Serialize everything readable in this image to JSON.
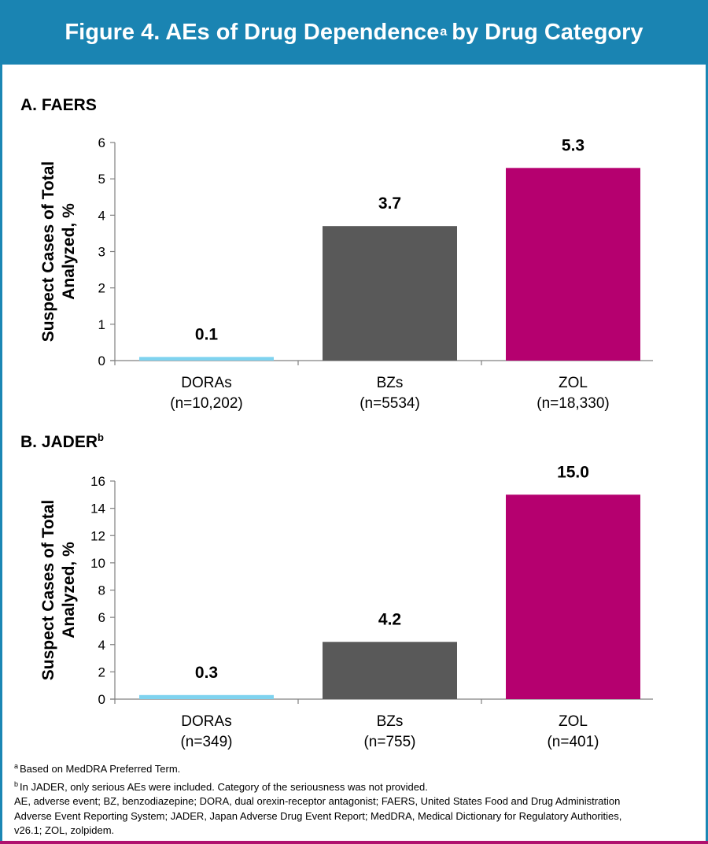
{
  "figure": {
    "title": "Figure 4. AEs of Drug Dependence",
    "title_sup": "a",
    "title_suffix": "by Drug Category",
    "banner_color": "#1a84b2"
  },
  "chart_data": [
    {
      "type": "bar",
      "panel_label": "A. FAERS",
      "panel_label_sup": "",
      "categories": [
        "DORAs",
        "BZs",
        "ZOL"
      ],
      "category_n": [
        "(n=10,202)",
        "(n=5534)",
        "(n=18,330)"
      ],
      "values": [
        0.1,
        3.7,
        5.3
      ],
      "data_labels": [
        "0.1",
        "3.7",
        "5.3"
      ],
      "colors": [
        "#7fd3ef",
        "#595959",
        "#b5006f"
      ],
      "ylabel": [
        "Suspect Cases of Total",
        "Analyzed, %"
      ],
      "ylim": [
        0,
        6
      ],
      "yticks": [
        0,
        1,
        2,
        3,
        4,
        5,
        6
      ],
      "grid": false
    },
    {
      "type": "bar",
      "panel_label": "B. JADER",
      "panel_label_sup": "b",
      "categories": [
        "DORAs",
        "BZs",
        "ZOL"
      ],
      "category_n": [
        "(n=349)",
        "(n=755)",
        "(n=401)"
      ],
      "values": [
        0.3,
        4.2,
        15.0
      ],
      "data_labels": [
        "0.3",
        "4.2",
        "15.0"
      ],
      "colors": [
        "#7fd3ef",
        "#595959",
        "#b5006f"
      ],
      "ylabel": [
        "Suspect Cases of Total",
        "Analyzed, %"
      ],
      "ylim": [
        0,
        16
      ],
      "yticks": [
        0,
        2,
        4,
        6,
        8,
        10,
        12,
        14,
        16
      ],
      "grid": false
    }
  ],
  "footnotes": {
    "a_mark": "a",
    "a_text": "Based on MedDRA Preferred Term.",
    "b_mark": "b",
    "b_text": "In JADER, only serious AEs were included. Category of the seriousness was not provided.",
    "abbrev_1": "AE, adverse event; BZ, benzodiazepine; DORA, dual orexin-receptor antagonist; FAERS, United States Food and Drug Administration",
    "abbrev_2": "Adverse Event Reporting System; JADER, Japan Adverse Drug Event Report; MedDRA, Medical Dictionary for Regulatory Authorities,",
    "abbrev_3": "v26.1; ZOL, zolpidem."
  }
}
